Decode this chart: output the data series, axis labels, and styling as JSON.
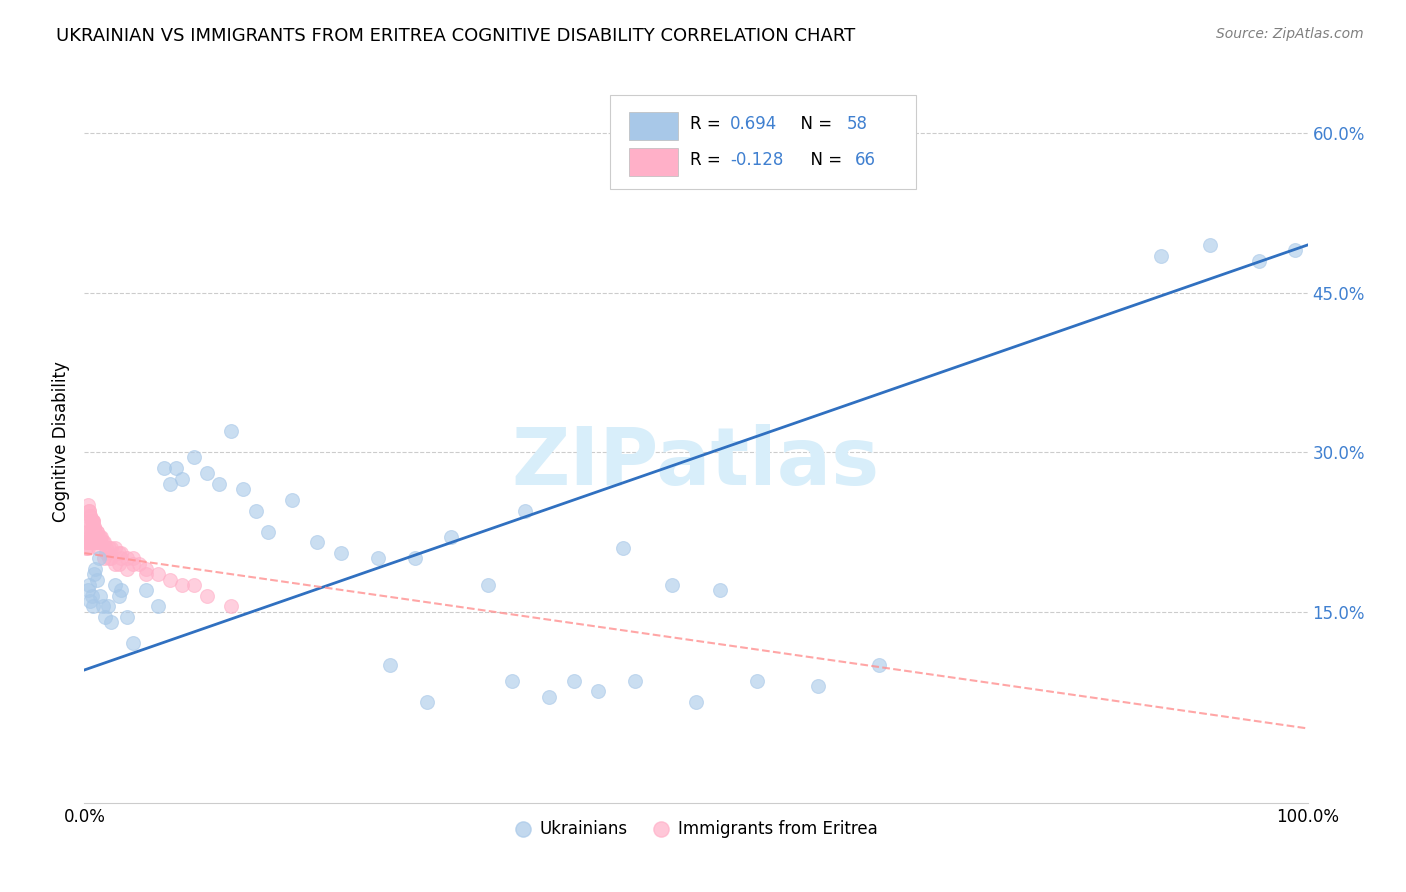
{
  "title": "UKRAINIAN VS IMMIGRANTS FROM ERITREA COGNITIVE DISABILITY CORRELATION CHART",
  "source": "Source: ZipAtlas.com",
  "ylabel": "Cognitive Disability",
  "xlim": [
    0,
    1.0
  ],
  "ylim": [
    -0.03,
    0.65
  ],
  "yticks_right": [
    0.15,
    0.3,
    0.45,
    0.6
  ],
  "ytick_labels_right": [
    "15.0%",
    "30.0%",
    "45.0%",
    "60.0%"
  ],
  "legend_label1": "Ukrainians",
  "legend_label2": "Immigrants from Eritrea",
  "color_blue": "#A8C8E8",
  "color_pink": "#FFB0C8",
  "color_line_blue": "#3070C0",
  "color_line_pink": "#FF9090",
  "color_right_axis": "#4080D0",
  "watermark_color": "#D8EEFA",
  "grid_color": "#CCCCCC",
  "background_color": "#FFFFFF",
  "blue_line_x0": 0.0,
  "blue_line_y0": 0.095,
  "blue_line_x1": 1.0,
  "blue_line_y1": 0.495,
  "pink_line_x0": 0.0,
  "pink_line_y0": 0.205,
  "pink_line_x1": 1.0,
  "pink_line_y1": 0.04,
  "ukrainians_x": [
    0.003,
    0.004,
    0.005,
    0.006,
    0.007,
    0.008,
    0.009,
    0.01,
    0.012,
    0.013,
    0.015,
    0.017,
    0.019,
    0.022,
    0.025,
    0.028,
    0.03,
    0.035,
    0.04,
    0.05,
    0.06,
    0.065,
    0.07,
    0.075,
    0.08,
    0.09,
    0.1,
    0.11,
    0.12,
    0.13,
    0.14,
    0.15,
    0.17,
    0.19,
    0.21,
    0.24,
    0.27,
    0.3,
    0.33,
    0.36,
    0.4,
    0.44,
    0.48,
    0.52,
    0.35,
    0.38,
    0.42,
    0.45,
    0.5,
    0.55,
    0.6,
    0.65,
    0.88,
    0.92,
    0.96,
    0.99,
    0.25,
    0.28
  ],
  "ukrainians_y": [
    0.17,
    0.175,
    0.16,
    0.165,
    0.155,
    0.185,
    0.19,
    0.18,
    0.2,
    0.165,
    0.155,
    0.145,
    0.155,
    0.14,
    0.175,
    0.165,
    0.17,
    0.145,
    0.12,
    0.17,
    0.155,
    0.285,
    0.27,
    0.285,
    0.275,
    0.295,
    0.28,
    0.27,
    0.32,
    0.265,
    0.245,
    0.225,
    0.255,
    0.215,
    0.205,
    0.2,
    0.2,
    0.22,
    0.175,
    0.245,
    0.085,
    0.21,
    0.175,
    0.17,
    0.085,
    0.07,
    0.075,
    0.085,
    0.065,
    0.085,
    0.08,
    0.1,
    0.485,
    0.495,
    0.48,
    0.49,
    0.1,
    0.065
  ],
  "eritrea_x": [
    0.001,
    0.0015,
    0.002,
    0.0025,
    0.003,
    0.003,
    0.003,
    0.004,
    0.004,
    0.004,
    0.005,
    0.005,
    0.005,
    0.006,
    0.006,
    0.006,
    0.007,
    0.007,
    0.008,
    0.008,
    0.009,
    0.009,
    0.01,
    0.01,
    0.011,
    0.012,
    0.013,
    0.014,
    0.015,
    0.016,
    0.018,
    0.02,
    0.022,
    0.025,
    0.028,
    0.03,
    0.035,
    0.04,
    0.05,
    0.06,
    0.07,
    0.08,
    0.09,
    0.1,
    0.12,
    0.003,
    0.004,
    0.005,
    0.006,
    0.007,
    0.008,
    0.009,
    0.01,
    0.012,
    0.014,
    0.016,
    0.018,
    0.02,
    0.022,
    0.025,
    0.028,
    0.03,
    0.035,
    0.04,
    0.045,
    0.05
  ],
  "eritrea_y": [
    0.21,
    0.215,
    0.225,
    0.215,
    0.23,
    0.215,
    0.21,
    0.245,
    0.235,
    0.225,
    0.24,
    0.22,
    0.215,
    0.235,
    0.225,
    0.215,
    0.235,
    0.22,
    0.23,
    0.215,
    0.22,
    0.215,
    0.225,
    0.215,
    0.21,
    0.215,
    0.22,
    0.215,
    0.215,
    0.2,
    0.205,
    0.2,
    0.2,
    0.195,
    0.195,
    0.2,
    0.19,
    0.195,
    0.185,
    0.185,
    0.18,
    0.175,
    0.175,
    0.165,
    0.155,
    0.25,
    0.245,
    0.24,
    0.235,
    0.235,
    0.23,
    0.225,
    0.225,
    0.22,
    0.22,
    0.215,
    0.21,
    0.21,
    0.21,
    0.21,
    0.205,
    0.205,
    0.2,
    0.2,
    0.195,
    0.19
  ]
}
